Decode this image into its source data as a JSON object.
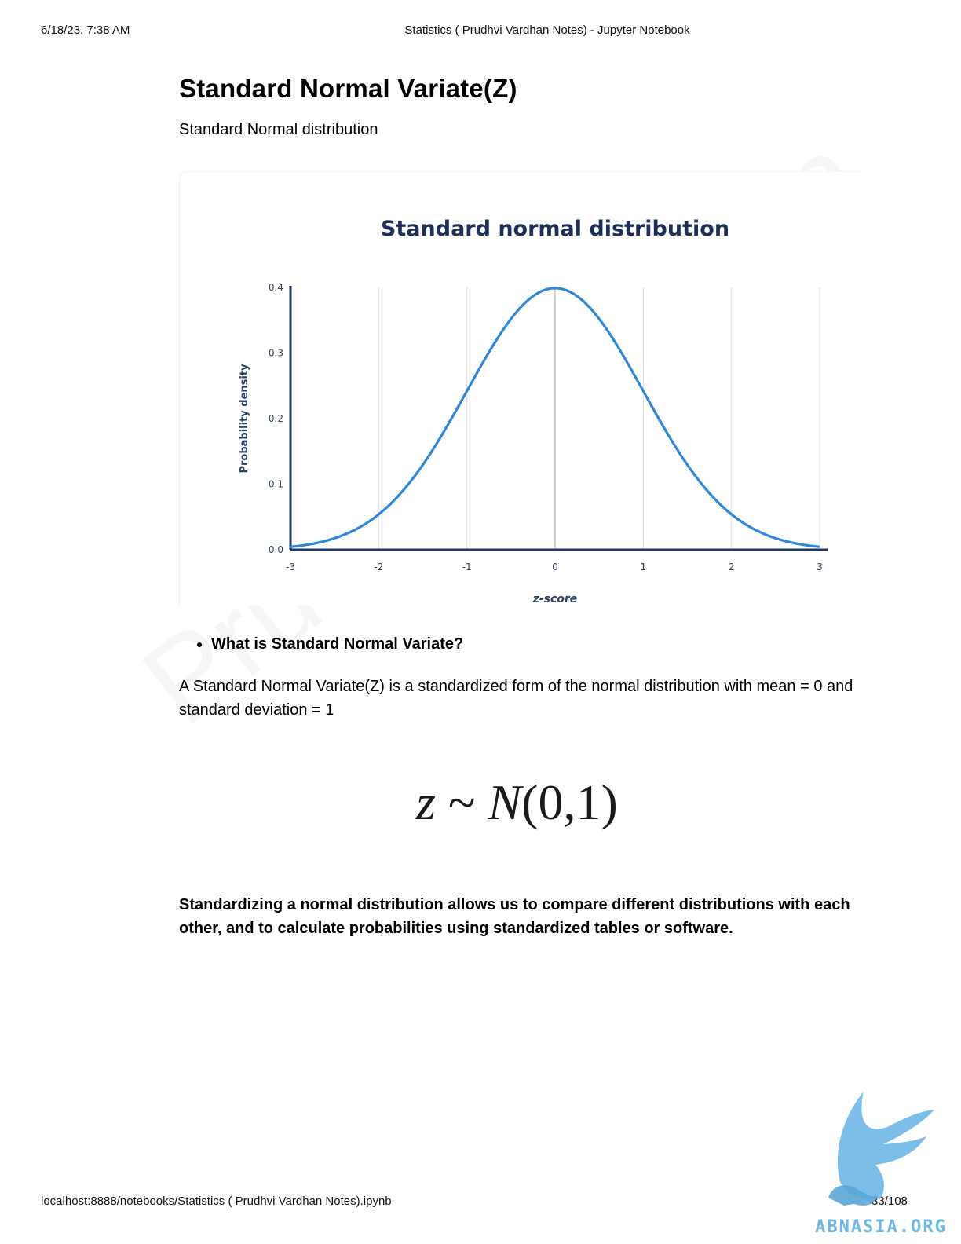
{
  "header": {
    "date": "6/18/23, 7:38 AM",
    "title": "Statistics ( Prudhvi Vardhan Notes) - Jupyter Notebook"
  },
  "footer": {
    "url": "localhost:8888/notebooks/Statistics ( Prudhvi Vardhan Notes).ipynb",
    "page": "33/108"
  },
  "main": {
    "title": "Standard Normal Variate(Z)",
    "subtitle": "Standard Normal distribution",
    "bullet": "What is Standard Normal Variate?",
    "paragraph": "A Standard Normal Variate(Z) is a standardized form of the normal distribution with mean = 0 and standard deviation = 1",
    "formula": {
      "z": "z",
      "tilde": " ~ ",
      "N": "N",
      "args": "(0,1)"
    },
    "conclusion": "Standardizing a normal distribution allows us to compare different distributions with each other, and to calculate probabilities using standardized tables or software."
  },
  "watermark": "Prudhvi Vardhan",
  "logo": {
    "text": "ABNASIA.ORG",
    "color": "#6fb7e6"
  },
  "chart_data": {
    "type": "line",
    "title": "Standard normal distribution",
    "xlabel": "z-score",
    "ylabel": "Probability density",
    "xlim": [
      -3,
      3
    ],
    "ylim": [
      0,
      0.4
    ],
    "x_ticks": [
      "-3",
      "-2",
      "-1",
      "0",
      "1",
      "2",
      "3"
    ],
    "y_ticks": [
      "0.0",
      "0.1",
      "0.2",
      "0.3",
      "0.4"
    ],
    "grid": "vertical",
    "line_color": "#2e86de",
    "axis_color": "#1f3a5f",
    "x": [
      -3,
      -2.5,
      -2,
      -1.5,
      -1,
      -0.5,
      0,
      0.5,
      1,
      1.5,
      2,
      2.5,
      3
    ],
    "y": [
      0.0044,
      0.0175,
      0.054,
      0.1295,
      0.242,
      0.3521,
      0.3989,
      0.3521,
      0.242,
      0.1295,
      0.054,
      0.0175,
      0.0044
    ]
  }
}
